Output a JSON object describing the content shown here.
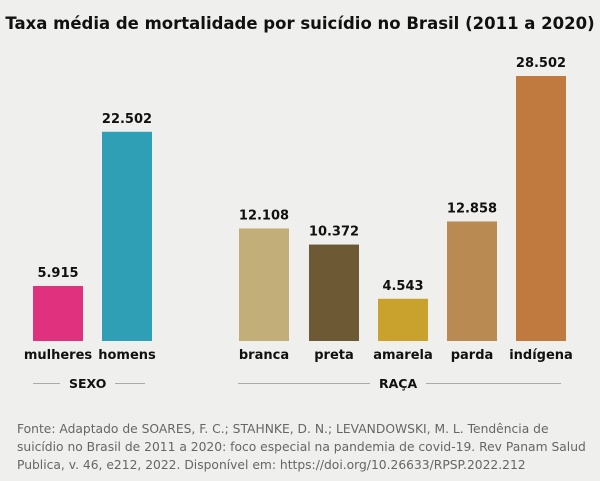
{
  "chart_data": {
    "type": "bar",
    "title": "Taxa média de mortalidade por suicídio no Brasil (2011 a 2020)",
    "categories": [
      "mulheres",
      "homens",
      "branca",
      "preta",
      "amarela",
      "parda",
      "indígena"
    ],
    "values": [
      5.915,
      22.502,
      12.108,
      10.372,
      4.543,
      12.858,
      28.502
    ],
    "value_labels": [
      "5.915",
      "22.502",
      "12.108",
      "10.372",
      "4.543",
      "12.858",
      "28.502"
    ],
    "groups": [
      {
        "label": "SEXO",
        "categories": [
          "mulheres",
          "homens"
        ]
      },
      {
        "label": "RAÇA",
        "categories": [
          "branca",
          "preta",
          "amarela",
          "parda",
          "indígena"
        ]
      }
    ],
    "colors": [
      "#e0317f",
      "#2f9fb5",
      "#c2ae79",
      "#6d5934",
      "#c9a22e",
      "#b98b52",
      "#c07a3f"
    ],
    "ylim": [
      0,
      28.502
    ],
    "grid": false
  },
  "source": "Fonte: Adaptado de SOARES, F. C.; STAHNKE, D. N.; LEVANDOWSKI, M. L. Tendência de suicídio no Brasil de 2011 a 2020: foco especial na pandemia de covid-19. Rev Panam Salud Publica, v. 46, e212, 2022. Disponível em: https://doi.org/10.26633/RPSP.2022.212"
}
